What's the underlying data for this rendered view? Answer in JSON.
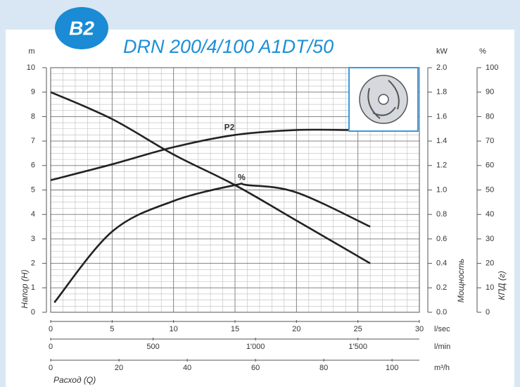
{
  "chart_data": {
    "type": "line",
    "badge": "B2",
    "title": "DRN 200/4/100 A1DT/50",
    "yunit": "m",
    "ylabel": "Напор (H)",
    "ylim": [
      0,
      10
    ],
    "yticks": [
      0,
      1,
      2,
      3,
      4,
      5,
      6,
      7,
      8,
      9,
      10
    ],
    "y2unit": "kW",
    "y2label": "Мощность",
    "y2lim": [
      0,
      2
    ],
    "y2ticks": [
      {
        "value": 0,
        "label": "0.0"
      },
      0.2,
      0.4,
      0.6,
      0.8,
      {
        "value": 1,
        "label": "1.0"
      },
      1.2,
      1.4,
      1.6,
      1.8,
      {
        "value": 2,
        "label": "2.0"
      }
    ],
    "y3unit": "%",
    "y3label": "КПД (г)",
    "y3lim": [
      0,
      100
    ],
    "y3ticks": [
      0,
      10,
      20,
      30,
      40,
      50,
      60,
      70,
      80,
      90,
      100
    ],
    "xlabel": "Расход (Q)",
    "x_axes": [
      {
        "unit": "l/sec",
        "xlim": [
          0,
          30
        ],
        "xticks": [
          0,
          5,
          10,
          15,
          20,
          25,
          30
        ]
      },
      {
        "unit": "l/min",
        "xlim": [
          0,
          1800
        ],
        "xticks": [
          0,
          500,
          {
            "value": 1000,
            "label": "1'000"
          },
          {
            "value": 1500,
            "label": "1'500"
          }
        ]
      },
      {
        "unit": "m³/h",
        "xlim": [
          0,
          108
        ],
        "xticks": [
          0,
          20,
          40,
          60,
          80,
          100
        ]
      }
    ],
    "grid": true,
    "minor_grid": true,
    "series": [
      {
        "color": "#222222",
        "axis": "y",
        "x": [
          0,
          5,
          10,
          15,
          20,
          26
        ],
        "values": [
          9.0,
          7.9,
          6.45,
          5.2,
          3.75,
          2.0
        ]
      },
      {
        "name": "P2",
        "color": "#222222",
        "axis": "y2",
        "x": [
          0,
          5,
          10,
          15,
          20,
          24.3
        ],
        "values": [
          1.08,
          1.21,
          1.35,
          1.45,
          1.49,
          1.49
        ]
      },
      {
        "name": "%",
        "color": "#222222",
        "axis": "y3",
        "x": [
          0.3,
          5,
          10,
          15,
          16,
          20,
          26
        ],
        "values": [
          4,
          33,
          45.5,
          52,
          52,
          49,
          35
        ]
      }
    ]
  }
}
